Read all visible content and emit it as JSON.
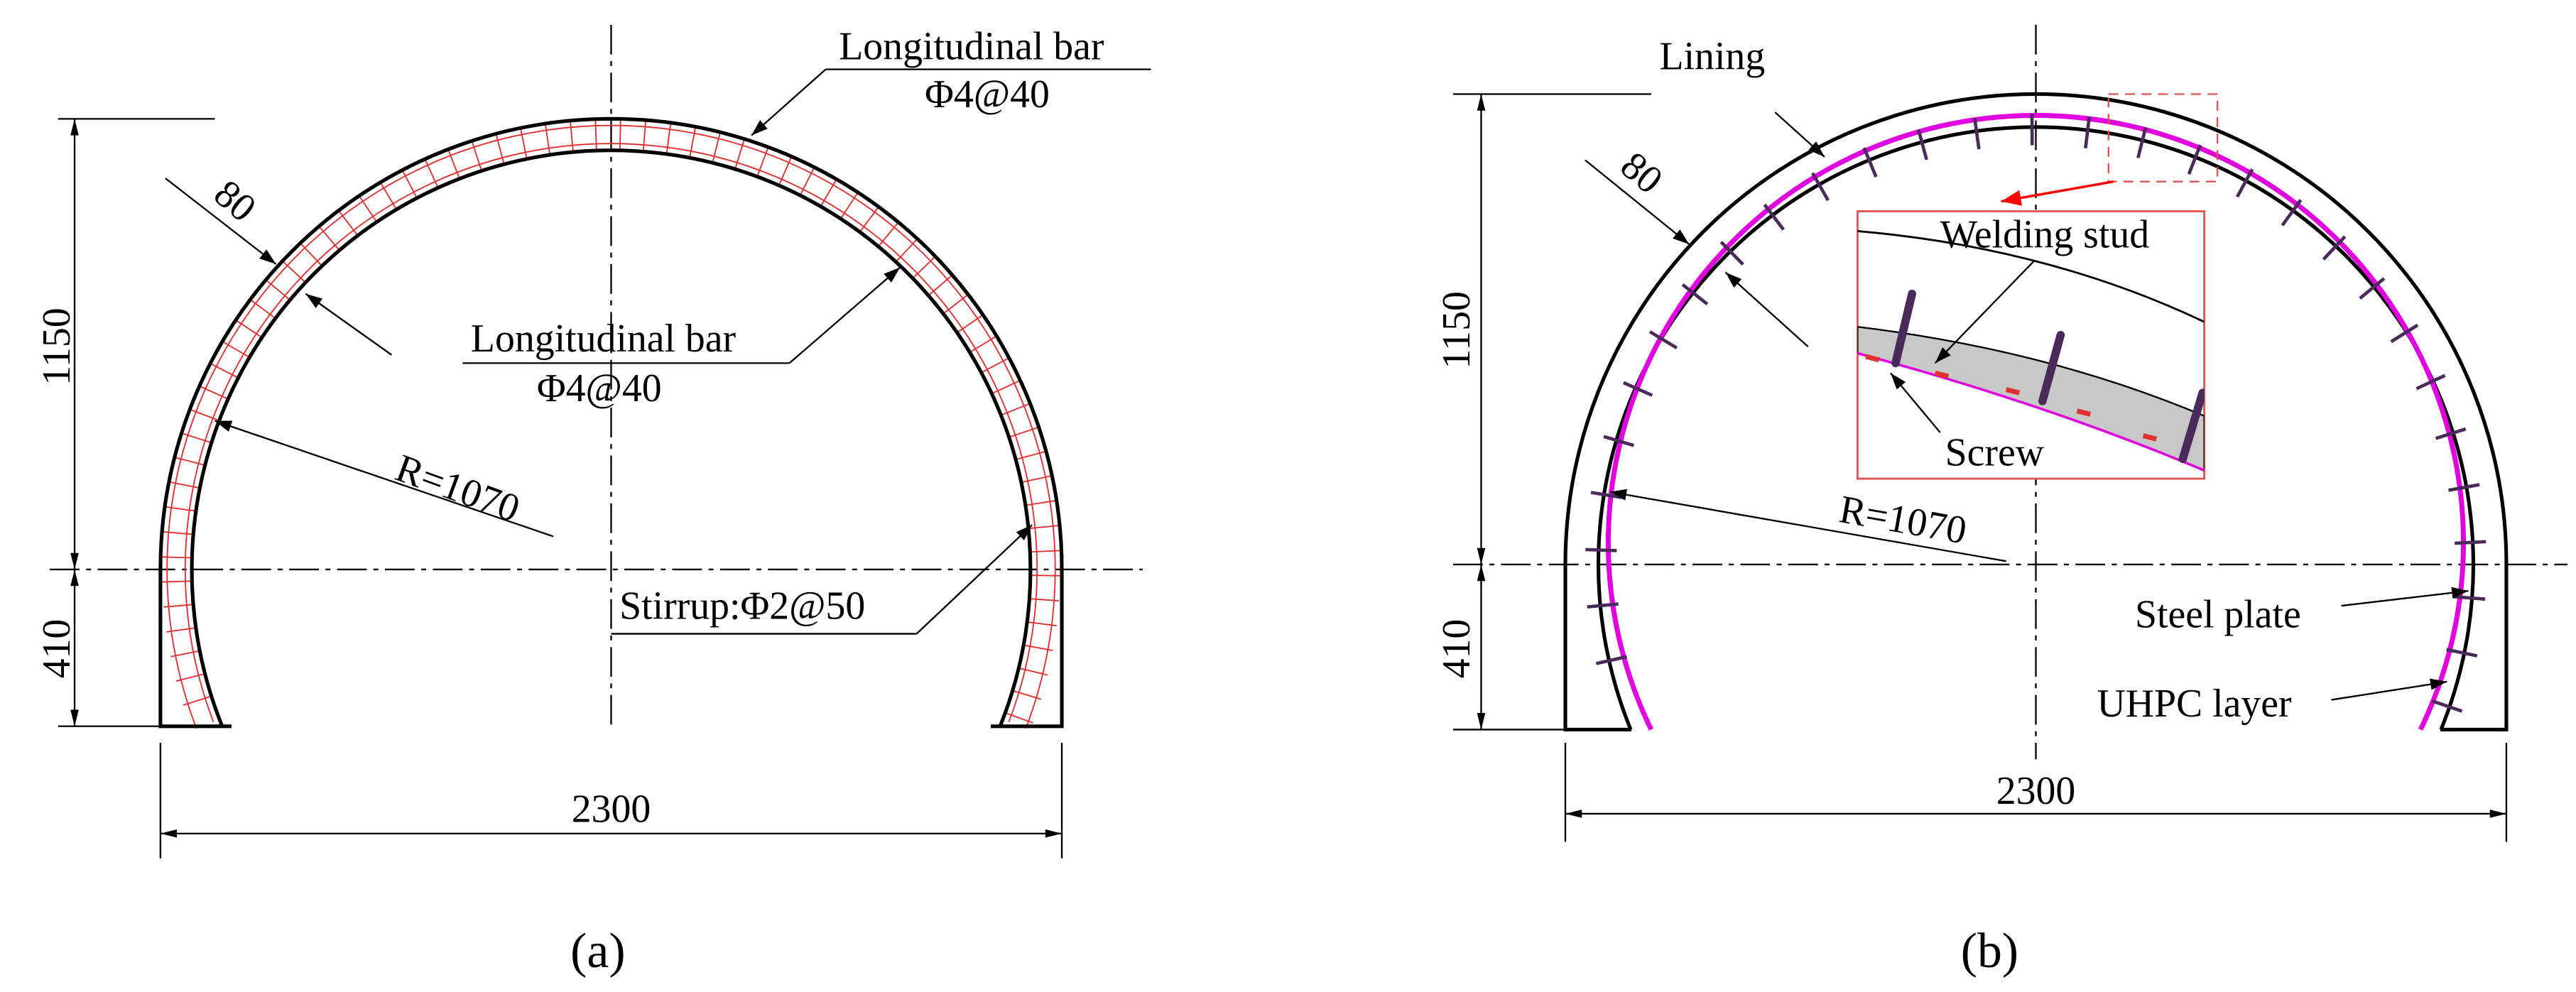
{
  "panel_a": {
    "label": "(a)",
    "longitudinal_bar_outer": {
      "name": "Longitudinal bar",
      "spec": "Φ4@40"
    },
    "longitudinal_bar_inner": {
      "name": "Longitudinal bar",
      "spec": "Φ4@40"
    },
    "thickness": "80",
    "height_upper": "1150",
    "height_lower": "410",
    "width": "2300",
    "radius": "R=1070",
    "stirrup": "Stirrup:Φ2@50"
  },
  "panel_b": {
    "label": "(b)",
    "lining": "Lining",
    "thickness": "80",
    "height_upper": "1150",
    "height_lower": "410",
    "width": "2300",
    "radius": "R=1070",
    "welding_stud": "Welding stud",
    "screw": "Screw",
    "steel_plate": "Steel plate",
    "uhpc_layer": "UHPC layer"
  }
}
